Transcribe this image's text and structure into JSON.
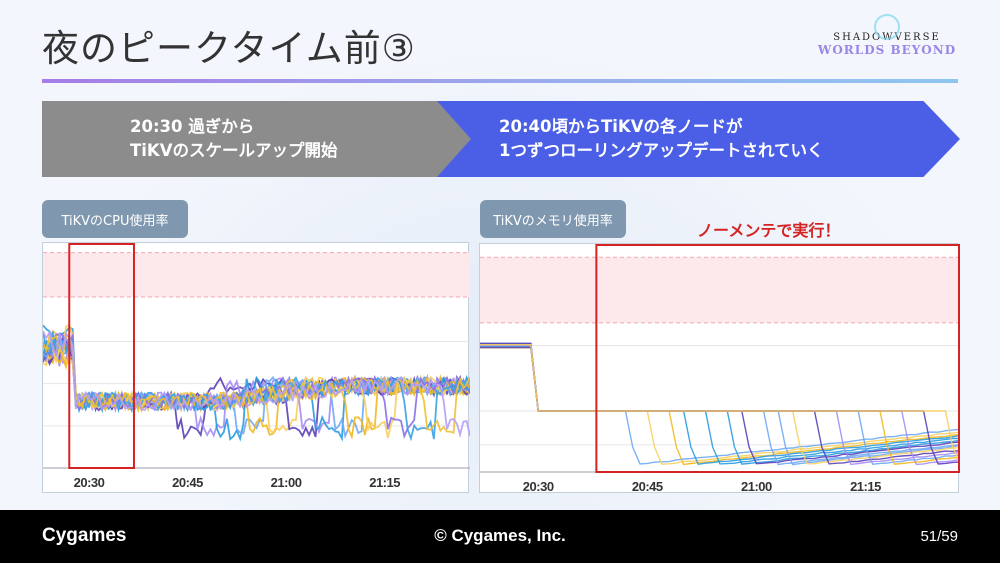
{
  "title": "夜のピークタイム前③",
  "logo": {
    "line1": "SHADOWVERSE",
    "line2": "WORLDS BEYOND"
  },
  "steps": [
    {
      "line1": "20:30 過ぎから",
      "line2": "TiKVのスケールアップ開始"
    },
    {
      "line1": "20:40頃からTiKVの各ノードが",
      "line2": "1つずつローリングアップデートされていく"
    }
  ],
  "annotation": "ノーメンテで実行！",
  "footer": {
    "brand": "Cygames",
    "copyright": "© Cygames, Inc.",
    "page": "51/59"
  },
  "colors": {
    "highlight": "#d42323",
    "band": "#fde8ec"
  },
  "chart_data": [
    {
      "type": "line",
      "title": "TiKVのCPU使用率",
      "x_unit": "minutes after 20:00",
      "x_range": [
        23,
        88
      ],
      "x_ticks": [
        {
          "v": 30,
          "label": "20:30"
        },
        {
          "v": 45,
          "label": "20:45"
        },
        {
          "v": 60,
          "label": "21:00"
        },
        {
          "v": 75,
          "label": "21:15"
        }
      ],
      "y_range": [
        0,
        100
      ],
      "gridlines": [
        57,
        38,
        19
      ],
      "threshold_band": [
        77,
        97
      ],
      "highlight_x": [
        27,
        37
      ],
      "before_level": 56,
      "drop_at": 28,
      "after_level": 30,
      "late_level": 37,
      "restart_dip": 5,
      "series_colors": [
        "#5b3fb5",
        "#a68cf5",
        "#2a9be0",
        "#6fa8f5",
        "#f2b820",
        "#f7cf5e",
        "#5b3fb5",
        "#a68cf5",
        "#2a9be0",
        "#6fa8f5",
        "#f2b820",
        "#f7cf5e",
        "#8a70e8",
        "#3aa0e8",
        "#f0c030",
        "#b79cf7"
      ],
      "restarts": [
        43,
        46,
        49,
        52,
        54,
        57,
        60,
        62,
        64,
        67,
        69,
        72,
        75,
        78,
        81,
        84
      ]
    },
    {
      "type": "line",
      "title": "TiKVのメモリ使用率",
      "x_unit": "minutes after 20:00",
      "x_range": [
        22,
        88
      ],
      "x_ticks": [
        {
          "v": 30,
          "label": "20:30"
        },
        {
          "v": 45,
          "label": "20:45"
        },
        {
          "v": 60,
          "label": "21:00"
        },
        {
          "v": 75,
          "label": "21:15"
        }
      ],
      "y_range": [
        0,
        100
      ],
      "gridlines": [
        56,
        27,
        12
      ],
      "threshold_band": [
        66,
        95
      ],
      "highlight_x": [
        38,
        88
      ],
      "before_level": 56,
      "drop_at": 30,
      "after_level": 27,
      "restart_dip": 3,
      "series_colors": [
        "#6fa8f5",
        "#f7cf5e",
        "#f2b820",
        "#2a9be0",
        "#2a9be0",
        "#2a9be0",
        "#5b3fb5",
        "#6fa8f5",
        "#6fa8f5",
        "#f7cf5e",
        "#5b3fb5",
        "#a68cf5",
        "#6fa8f5",
        "#f2b820",
        "#a68cf5",
        "#5b3fb5",
        "#f7cf5e"
      ],
      "restarts": [
        42,
        45,
        48,
        50,
        53,
        56,
        58,
        61,
        63,
        65,
        68,
        71,
        74,
        77,
        80,
        83,
        86
      ]
    }
  ]
}
